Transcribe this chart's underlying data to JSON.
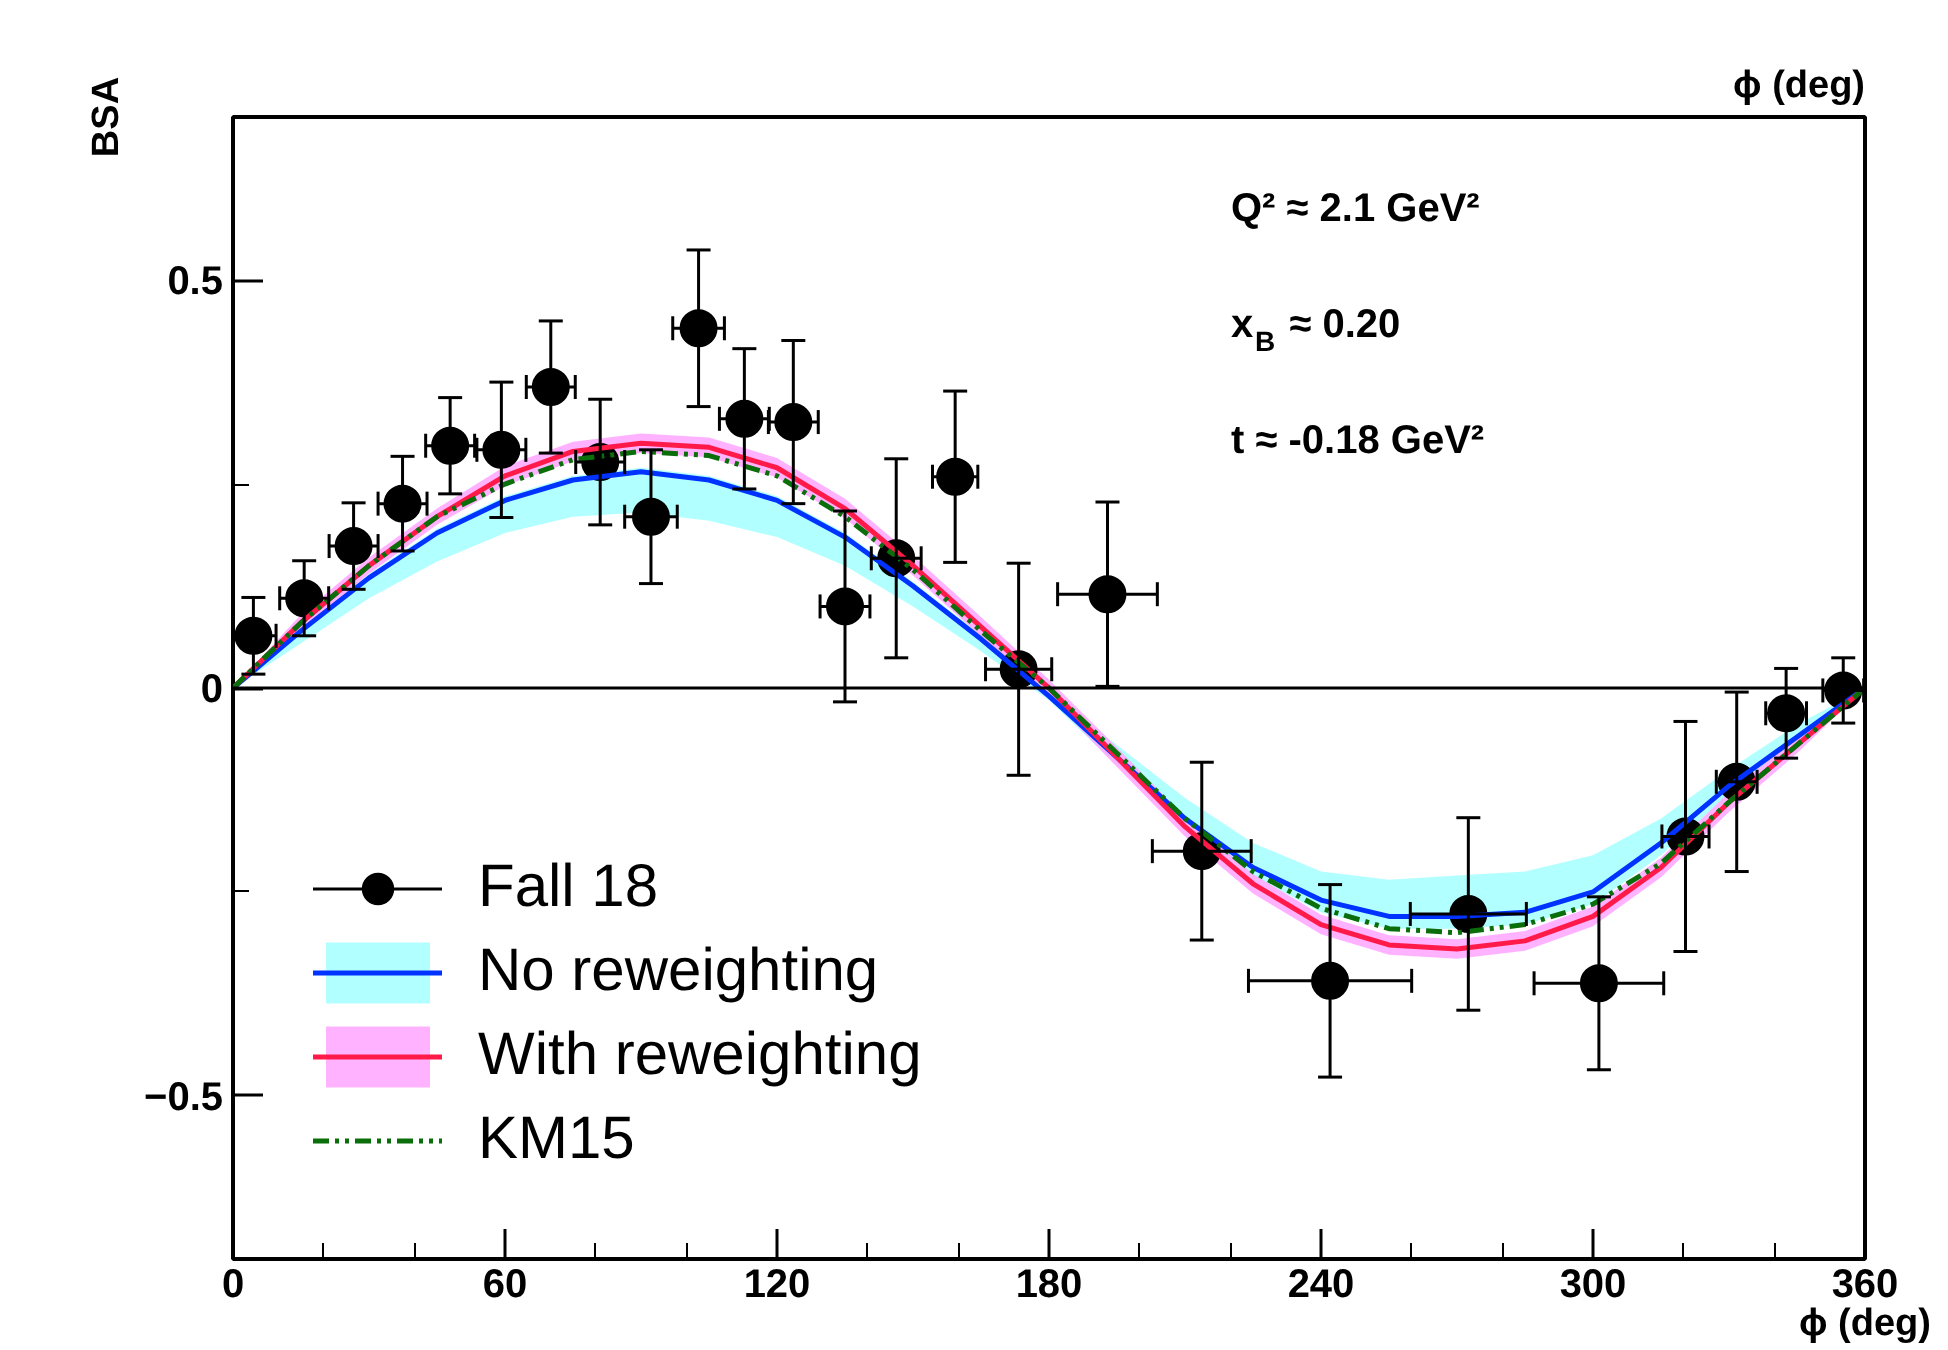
{
  "chart_data": {
    "type": "scatter",
    "xlabel": "ϕ (deg)",
    "ylabel": "BSA",
    "xlim": [
      0,
      360
    ],
    "xticks": [
      0,
      {
        "value": 20,
        "label": null
      },
      {
        "value": 40,
        "label": null
      },
      60,
      {
        "value": 80,
        "label": null
      },
      {
        "value": 100,
        "label": null
      },
      120,
      {
        "value": 140,
        "label": null
      },
      {
        "value": 160,
        "label": null
      },
      180,
      {
        "value": 200,
        "label": null
      },
      {
        "value": 220,
        "label": null
      },
      240,
      {
        "value": 260,
        "label": null
      },
      {
        "value": 280,
        "label": null
      },
      300,
      {
        "value": 320,
        "label": null
      },
      {
        "value": 340,
        "label": null
      },
      360
    ],
    "ylim": [
      -0.7,
      0.7
    ],
    "yticks": [
      {
        "value": -0.5,
        "label": "−0.5"
      },
      {
        "value": -0.25,
        "label": null
      },
      0,
      {
        "value": 0.25,
        "label": null
      },
      0.5
    ],
    "ref_lines": [
      {
        "axis": "y",
        "value": 0,
        "color": "#000000",
        "line_style": "solid"
      }
    ],
    "legend": "bottom left",
    "grid": false,
    "annotations": [
      "Q² ≈ 2.1 GeV²",
      "x$_{B}$ ≈ 0.20",
      "t   ≈ -0.18 GeV²",
      "ϕ (deg)"
    ],
    "series": [
      {
        "name": "Fall 18",
        "marker": "circle",
        "color": "#000000",
        "x": [
          4.5,
          15.7,
          26.6,
          37.4,
          47.9,
          59.2,
          70.1,
          81,
          92.2,
          102.7,
          112.8,
          123.6,
          135,
          146.3,
          159.3,
          173.3,
          192.9,
          213.7,
          242,
          272.5,
          301.3,
          320.4,
          331.7,
          342.6,
          355.2
        ],
        "values": [
          0.064,
          0.11,
          0.174,
          0.226,
          0.297,
          0.292,
          0.369,
          0.277,
          0.21,
          0.441,
          0.33,
          0.326,
          0.1,
          0.159,
          0.259,
          0.023,
          0.115,
          -0.2,
          -0.359,
          -0.277,
          -0.362,
          -0.182,
          -0.115,
          -0.031,
          -0.003
        ],
        "errors": [
          0.047,
          0.046,
          0.053,
          0.058,
          0.059,
          0.083,
          0.081,
          0.077,
          0.082,
          0.096,
          0.086,
          0.1,
          0.117,
          0.122,
          0.105,
          0.13,
          0.113,
          0.109,
          0.118,
          0.118,
          0.106,
          0.141,
          0.11,
          0.055,
          0.04
        ],
        "xerrors": [
          5,
          5.4,
          5.4,
          5.4,
          5.4,
          5.4,
          5.4,
          5.4,
          5.8,
          5.7,
          5.5,
          5.5,
          5.5,
          5.5,
          5,
          7.3,
          11,
          10.9,
          18,
          12.8,
          14.3,
          5.2,
          4.5,
          4.5,
          4.5
        ]
      },
      {
        "name": "No reweighting",
        "type": "line",
        "color": "#0033ff",
        "line_style": "solid",
        "x": [
          0,
          15,
          30,
          45,
          60,
          75,
          90,
          105,
          120,
          135,
          150,
          165,
          180,
          195,
          210,
          225,
          240,
          255,
          270,
          285,
          300,
          315,
          330,
          345,
          360
        ],
        "values": [
          0,
          0.07,
          0.135,
          0.19,
          0.23,
          0.255,
          0.265,
          0.255,
          0.23,
          0.185,
          0.125,
          0.06,
          -0.01,
          -0.085,
          -0.16,
          -0.22,
          -0.26,
          -0.28,
          -0.28,
          -0.275,
          -0.25,
          -0.19,
          -0.12,
          -0.06,
          0
        ],
        "lower": [
          0,
          0.055,
          0.11,
          0.155,
          0.19,
          0.21,
          0.215,
          0.205,
          0.185,
          0.15,
          0.1,
          0.045,
          -0.015,
          -0.095,
          -0.17,
          -0.23,
          -0.275,
          -0.295,
          -0.295,
          -0.29,
          -0.265,
          -0.205,
          -0.13,
          -0.065,
          0
        ],
        "upper": [
          0,
          0.075,
          0.14,
          0.195,
          0.235,
          0.26,
          0.27,
          0.26,
          0.235,
          0.19,
          0.13,
          0.065,
          -0.005,
          -0.07,
          -0.135,
          -0.19,
          -0.225,
          -0.235,
          -0.23,
          -0.225,
          -0.205,
          -0.16,
          -0.1,
          -0.045,
          0
        ]
      },
      {
        "name": "With reweighting",
        "type": "line",
        "color": "#ff1a4a",
        "line_style": "solid",
        "x": [
          0,
          15,
          30,
          45,
          60,
          75,
          90,
          105,
          120,
          135,
          150,
          165,
          180,
          195,
          210,
          225,
          240,
          255,
          270,
          285,
          300,
          315,
          330,
          345,
          360
        ],
        "values": [
          0,
          0.08,
          0.15,
          0.21,
          0.26,
          0.29,
          0.3,
          0.295,
          0.27,
          0.22,
          0.15,
          0.075,
          0,
          -0.085,
          -0.17,
          -0.24,
          -0.29,
          -0.315,
          -0.32,
          -0.31,
          -0.28,
          -0.22,
          -0.14,
          -0.07,
          0
        ],
        "lower": [
          0,
          0.07,
          0.14,
          0.2,
          0.248,
          0.278,
          0.288,
          0.283,
          0.258,
          0.208,
          0.138,
          0.063,
          -0.01,
          -0.097,
          -0.182,
          -0.252,
          -0.302,
          -0.327,
          -0.332,
          -0.322,
          -0.292,
          -0.232,
          -0.152,
          -0.08,
          0
        ],
        "upper": [
          0,
          0.09,
          0.16,
          0.22,
          0.272,
          0.302,
          0.312,
          0.307,
          0.282,
          0.232,
          0.162,
          0.087,
          0.01,
          -0.073,
          -0.158,
          -0.228,
          -0.278,
          -0.303,
          -0.308,
          -0.298,
          -0.268,
          -0.208,
          -0.128,
          -0.06,
          0
        ]
      },
      {
        "name": "KM15",
        "type": "line",
        "color": "#0a6e0a",
        "line_style": "dashed",
        "x": [
          0,
          15,
          30,
          45,
          60,
          75,
          90,
          105,
          120,
          135,
          150,
          165,
          180,
          195,
          210,
          225,
          240,
          255,
          270,
          285,
          300,
          315,
          330,
          345,
          360
        ],
        "values": [
          0,
          0.08,
          0.15,
          0.21,
          0.25,
          0.28,
          0.29,
          0.285,
          0.26,
          0.21,
          0.145,
          0.07,
          0,
          -0.08,
          -0.16,
          -0.225,
          -0.27,
          -0.295,
          -0.3,
          -0.29,
          -0.265,
          -0.215,
          -0.14,
          -0.07,
          0
        ]
      }
    ]
  }
}
